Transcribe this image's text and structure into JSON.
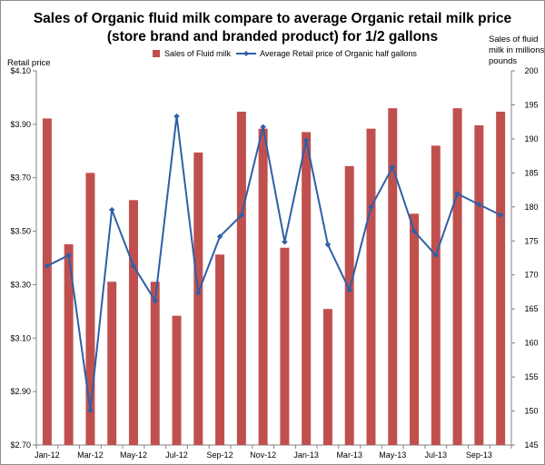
{
  "chart_data": {
    "type": "bar",
    "title_lines": [
      "Sales of Organic fluid milk compare to average Organic retail milk price",
      "(store brand and branded product) for 1/2 gallons"
    ],
    "left_axis": {
      "label": "Retail price",
      "ticks": [
        "$4.10",
        "$3.90",
        "$3.70",
        "$3.50",
        "$3.30",
        "$3.10",
        "$2.90",
        "$2.70"
      ],
      "lim": [
        2.7,
        4.1
      ]
    },
    "right_axis": {
      "label_lines": [
        "Sales of fluid",
        "milk in millions",
        "pounds"
      ],
      "ticks": [
        "200",
        "195",
        "190",
        "185",
        "180",
        "175",
        "170",
        "165",
        "160",
        "155",
        "150",
        "145"
      ],
      "lim": [
        145,
        200
      ]
    },
    "categories": [
      "Jan-12",
      "Feb-12",
      "Mar-12",
      "Apr-12",
      "May-12",
      "Jun-12",
      "Jul-12",
      "Aug-12",
      "Sep-12",
      "Oct-12",
      "Nov-12",
      "Dec-12",
      "Jan-13",
      "Feb-13",
      "Mar-13",
      "Apr-13",
      "May-13",
      "Jun-13",
      "Jul-13",
      "Aug-13",
      "Sep-13",
      "Oct-13"
    ],
    "x_tick_labels": [
      "Jan-12",
      "Mar-12",
      "May-12",
      "Jul-12",
      "Sep-12",
      "Nov-12",
      "Jan-13",
      "Mar-13",
      "May-13",
      "Jul-13",
      "Sep-13"
    ],
    "series": [
      {
        "name": "Sales of Fluid milk",
        "type": "bar",
        "axis": "right",
        "color": "#c0504d",
        "values": [
          193,
          174.5,
          185,
          169,
          181,
          169,
          164,
          188,
          173,
          194,
          191.5,
          174,
          191,
          165,
          186,
          191.5,
          194.5,
          179,
          189,
          194.5,
          192,
          194
        ]
      },
      {
        "name": "Average Retail price of Organic half gallons",
        "type": "line",
        "axis": "left",
        "color": "#2f5fa8",
        "values": [
          3.37,
          3.41,
          2.83,
          3.58,
          3.37,
          3.24,
          3.93,
          3.27,
          3.48,
          3.56,
          3.89,
          3.46,
          3.84,
          3.45,
          3.28,
          3.59,
          3.74,
          3.5,
          3.41,
          3.64,
          3.6,
          3.56
        ]
      }
    ]
  }
}
